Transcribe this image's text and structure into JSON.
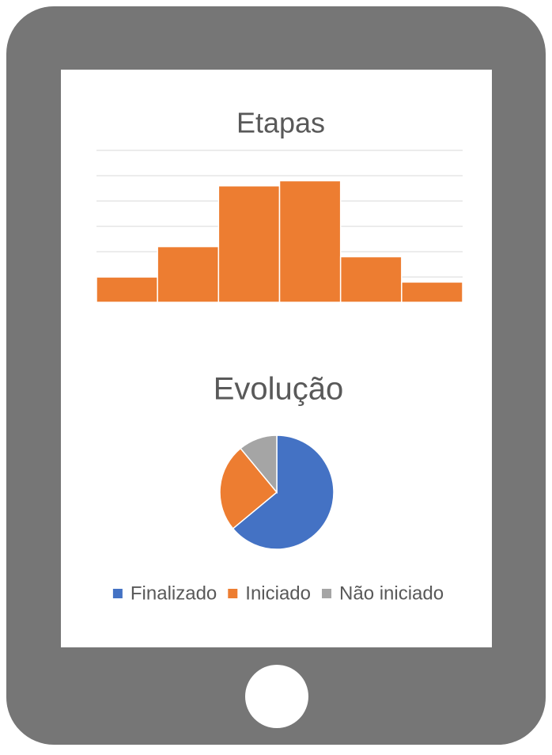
{
  "chart_data": [
    {
      "type": "bar",
      "title": "Etapas",
      "categories": [
        null,
        null,
        null,
        null,
        null,
        null
      ],
      "values": [
        1,
        2.2,
        4.6,
        4.8,
        1.8,
        0.8
      ],
      "color": "#ed7d31",
      "ylim": [
        0,
        6
      ],
      "yticks": [
        0,
        1,
        2,
        3,
        4,
        5,
        6
      ],
      "grid": true
    },
    {
      "type": "pie",
      "title": "Evolução",
      "categories": [
        "Finalizado",
        "Iniciado",
        "Não iniciado"
      ],
      "values": [
        64,
        25,
        11
      ],
      "colors": [
        "#4472c4",
        "#ed7d31",
        "#a5a5a5"
      ],
      "legend": "bottom"
    }
  ]
}
